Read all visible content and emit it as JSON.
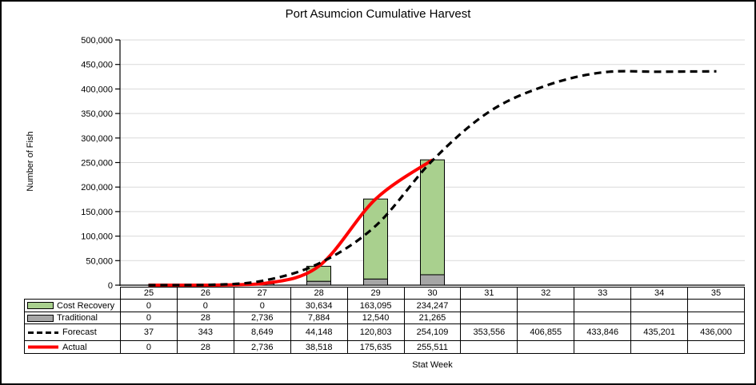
{
  "chart_data": {
    "type": "combo",
    "title": "Port Asumcion Cumulative Harvest",
    "xlabel": "Stat Week",
    "ylabel": "Number of Fish",
    "ylim": [
      0,
      500000
    ],
    "ytick_step": 50000,
    "ytick_labels": [
      "0",
      "50,000",
      "100,000",
      "150,000",
      "200,000",
      "250,000",
      "300,000",
      "350,000",
      "400,000",
      "450,000",
      "500,000"
    ],
    "grid": "horizontal",
    "legend_position": "table-left",
    "categories": [
      "25",
      "26",
      "27",
      "28",
      "29",
      "30",
      "31",
      "32",
      "33",
      "34",
      "35"
    ],
    "stack_order": [
      "Traditional",
      "Cost Recovery"
    ],
    "line_draw_order": [
      "Actual",
      "Forecast"
    ],
    "series": [
      {
        "name": "Cost Recovery",
        "type": "bar",
        "color": "#A9D08E",
        "values": [
          0,
          0,
          0,
          30634,
          163095,
          234247,
          null,
          null,
          null,
          null,
          null
        ],
        "labels": [
          "0",
          "0",
          "0",
          "30,634",
          "163,095",
          "234,247",
          "",
          "",
          "",
          "",
          ""
        ]
      },
      {
        "name": "Traditional",
        "type": "bar",
        "color": "#A6A6A6",
        "values": [
          0,
          28,
          2736,
          7884,
          12540,
          21265,
          null,
          null,
          null,
          null,
          null
        ],
        "labels": [
          "0",
          "28",
          "2,736",
          "7,884",
          "12,540",
          "21,265",
          "",
          "",
          "",
          "",
          ""
        ]
      },
      {
        "name": "Forecast",
        "type": "line-dashed",
        "color": "#000000",
        "values": [
          37,
          343,
          8649,
          44148,
          120803,
          254109,
          353556,
          406855,
          433846,
          435201,
          436000
        ],
        "labels": [
          "37",
          "343",
          "8,649",
          "44,148",
          "120,803",
          "254,109",
          "353,556",
          "406,855",
          "433,846",
          "435,201",
          "436,000"
        ]
      },
      {
        "name": "Actual",
        "type": "line",
        "color": "#FF0000",
        "values": [
          0,
          28,
          2736,
          38518,
          175635,
          255511,
          null,
          null,
          null,
          null,
          null
        ],
        "labels": [
          "0",
          "28",
          "2,736",
          "38,518",
          "175,635",
          "255,511",
          "",
          "",
          "",
          "",
          ""
        ]
      }
    ],
    "colors": {
      "gridline": "#D9D9D9",
      "axis": "#000000",
      "frame": "#000000"
    }
  }
}
